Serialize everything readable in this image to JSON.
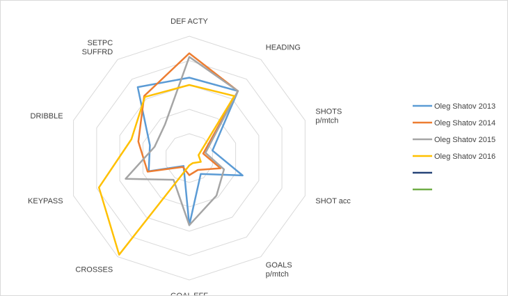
{
  "chart_data": {
    "type": "radar",
    "title": "",
    "axes": [
      [
        "DEF ACTY"
      ],
      [
        "HEADING"
      ],
      [
        "SHOTS",
        "p/mtch"
      ],
      [
        "SHOT acc"
      ],
      [
        "GOALS",
        "p/mtch"
      ],
      [
        "GOAL EFF"
      ],
      [
        "CROSSES"
      ],
      [
        "KEYPASS"
      ],
      [
        "DRIBBLE"
      ],
      [
        "SETPC",
        "SUFFRD"
      ]
    ],
    "r_range": [
      0,
      10
    ],
    "grid": true,
    "grid_rings": 5,
    "legend_position": "right",
    "series": [
      {
        "name": "Oleg Shatov 2013",
        "color": "#5b9bd5",
        "values": [
          6.6,
          6.8,
          2.0,
          4.6,
          1.6,
          5.5,
          0.8,
          3.5,
          3.4,
          7.2
        ]
      },
      {
        "name": "Oleg Shatov 2014",
        "color": "#ed7d31",
        "values": [
          8.6,
          6.8,
          1.2,
          2.7,
          1.2,
          1.4,
          0.9,
          3.6,
          4.4,
          6.3
        ]
      },
      {
        "name": "Oleg Shatov 2015",
        "color": "#a5a5a5",
        "values": [
          8.3,
          6.8,
          1.4,
          3.0,
          3.8,
          5.5,
          2.2,
          5.5,
          3.0,
          3.4
        ]
      },
      {
        "name": "Oleg Shatov 2016",
        "color": "#ffc000",
        "values": [
          6.0,
          6.3,
          0.8,
          1.0,
          0.5,
          0.6,
          9.8,
          7.8,
          5.0,
          6.2
        ]
      },
      {
        "name": "",
        "color": "#264478",
        "values": []
      },
      {
        "name": "",
        "color": "#70ad47",
        "values": []
      }
    ]
  }
}
